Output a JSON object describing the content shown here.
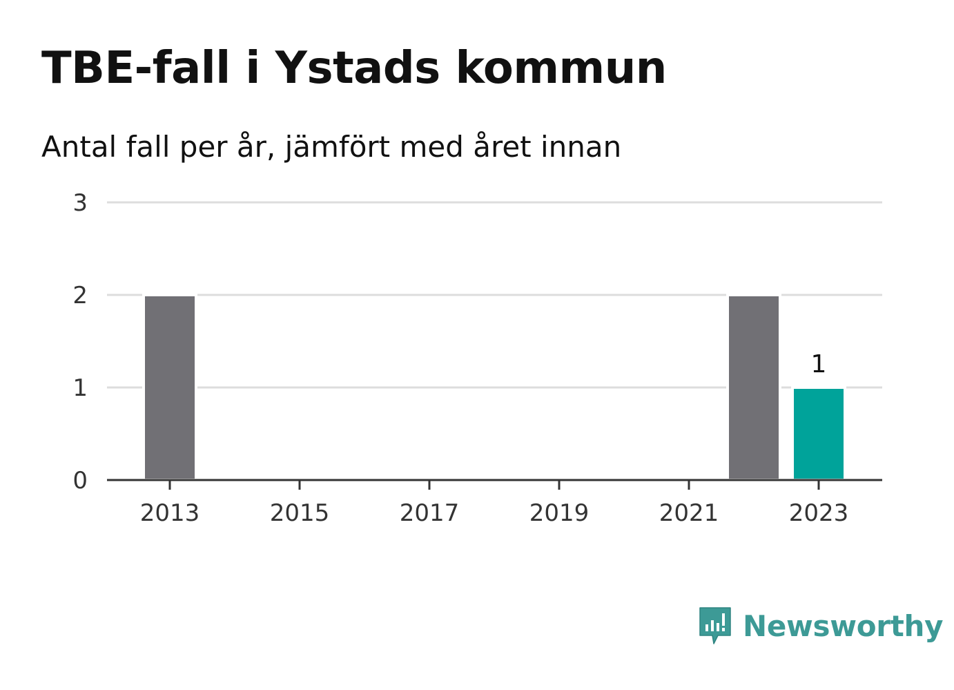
{
  "chart_data": {
    "type": "bar",
    "title": "TBE-fall i Ystads kommun",
    "subtitle": "Antal fall per år, jämfört med året innan",
    "x": [
      2013,
      2014,
      2015,
      2016,
      2017,
      2018,
      2019,
      2020,
      2021,
      2022,
      2023
    ],
    "values": [
      2,
      0,
      0,
      0,
      0,
      0,
      0,
      0,
      0,
      2,
      1
    ],
    "x_tick_labels": [
      "2013",
      "2015",
      "2017",
      "2019",
      "2021",
      "2023"
    ],
    "y_tick_labels": [
      "0",
      "1",
      "2",
      "3"
    ],
    "ylim": [
      0,
      3
    ],
    "grid": true,
    "highlight": {
      "x": 2023,
      "label": "1"
    },
    "colors": {
      "bar": "#717075",
      "highlight": "#00a39a",
      "grid": "#dddddd",
      "axis": "#333333"
    }
  },
  "brand": {
    "name": "Newsworthy",
    "icon": "newsworthy-logo-icon",
    "color": "#3d9a96"
  }
}
